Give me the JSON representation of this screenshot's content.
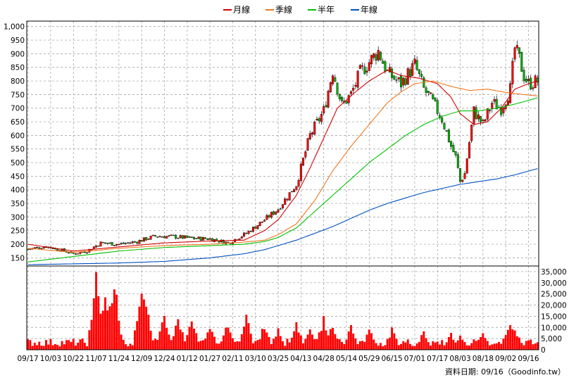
{
  "legend": [
    {
      "label": "月線",
      "color": "#d40000"
    },
    {
      "label": "季線",
      "color": "#f07820"
    },
    {
      "label": "半年",
      "color": "#00c000"
    },
    {
      "label": "年線",
      "color": "#0050c0"
    }
  ],
  "credit": "資料日期: 09/16（Goodinfo.tw）",
  "colors": {
    "up": "#ff0000",
    "down": "#00b000",
    "volume": "#ff0000",
    "grid": "#999999",
    "frame": "#000000"
  },
  "chart_data": {
    "type": "candlestick",
    "price_axis": {
      "min": 120,
      "max": 1020,
      "ticks": [
        150,
        200,
        250,
        300,
        350,
        400,
        450,
        500,
        550,
        600,
        650,
        700,
        750,
        800,
        850,
        900,
        950,
        1000
      ],
      "tick_labels": [
        "150",
        "200",
        "250",
        "300",
        "350",
        "400",
        "450",
        "500",
        "550",
        "600",
        "650",
        "700",
        "750",
        "800",
        "850",
        "900",
        "950",
        "1,000"
      ]
    },
    "volume_axis": {
      "min": 0,
      "max": 37500,
      "ticks": [
        0,
        5000,
        10000,
        15000,
        20000,
        25000,
        30000,
        35000
      ],
      "tick_labels": [
        "0",
        "5,000",
        "10,000",
        "15,000",
        "20,000",
        "25,000",
        "30,000",
        "35,000"
      ]
    },
    "x_labels": [
      "09/17",
      "10/03",
      "10/22",
      "11/07",
      "11/24",
      "12/09",
      "12/24",
      "01/12",
      "01/27",
      "02/11",
      "03/10",
      "03/25",
      "04/13",
      "04/28",
      "05/14",
      "05/29",
      "06/15",
      "07/01",
      "07/17",
      "08/03",
      "08/18",
      "09/02",
      "09/16"
    ],
    "x_label_index": [
      0,
      10,
      20,
      30,
      40,
      50,
      60,
      70,
      80,
      90,
      100,
      110,
      120,
      130,
      140,
      150,
      160,
      170,
      180,
      190,
      200,
      210,
      220
    ],
    "bars": 225,
    "close_anchors": [
      [
        0,
        182
      ],
      [
        8,
        192
      ],
      [
        14,
        180
      ],
      [
        20,
        165
      ],
      [
        26,
        175
      ],
      [
        32,
        205
      ],
      [
        40,
        200
      ],
      [
        48,
        210
      ],
      [
        56,
        230
      ],
      [
        64,
        228
      ],
      [
        72,
        222
      ],
      [
        80,
        220
      ],
      [
        88,
        205
      ],
      [
        96,
        240
      ],
      [
        104,
        290
      ],
      [
        110,
        330
      ],
      [
        118,
        420
      ],
      [
        124,
        600
      ],
      [
        130,
        690
      ],
      [
        134,
        840
      ],
      [
        138,
        710
      ],
      [
        142,
        750
      ],
      [
        146,
        830
      ],
      [
        150,
        870
      ],
      [
        154,
        910
      ],
      [
        158,
        830
      ],
      [
        164,
        790
      ],
      [
        170,
        860
      ],
      [
        174,
        770
      ],
      [
        178,
        720
      ],
      [
        182,
        660
      ],
      [
        186,
        560
      ],
      [
        188,
        520
      ],
      [
        190,
        430
      ],
      [
        192,
        460
      ],
      [
        196,
        690
      ],
      [
        200,
        640
      ],
      [
        204,
        720
      ],
      [
        208,
        700
      ],
      [
        212,
        770
      ],
      [
        214,
        920
      ],
      [
        216,
        880
      ],
      [
        218,
        820
      ],
      [
        220,
        790
      ],
      [
        224,
        800
      ]
    ],
    "ma_monthly": [
      [
        0,
        200
      ],
      [
        20,
        175
      ],
      [
        40,
        190
      ],
      [
        60,
        205
      ],
      [
        80,
        212
      ],
      [
        95,
        215
      ],
      [
        104,
        250
      ],
      [
        110,
        290
      ],
      [
        118,
        380
      ],
      [
        124,
        480
      ],
      [
        130,
        590
      ],
      [
        136,
        700
      ],
      [
        144,
        760
      ],
      [
        150,
        800
      ],
      [
        158,
        840
      ],
      [
        164,
        820
      ],
      [
        172,
        810
      ],
      [
        180,
        790
      ],
      [
        186,
        740
      ],
      [
        190,
        680
      ],
      [
        196,
        640
      ],
      [
        202,
        650
      ],
      [
        208,
        700
      ],
      [
        214,
        770
      ],
      [
        220,
        790
      ],
      [
        224,
        800
      ]
    ],
    "ma_quarterly": [
      [
        0,
        185
      ],
      [
        20,
        170
      ],
      [
        40,
        185
      ],
      [
        60,
        195
      ],
      [
        80,
        200
      ],
      [
        95,
        208
      ],
      [
        104,
        215
      ],
      [
        110,
        235
      ],
      [
        118,
        275
      ],
      [
        126,
        360
      ],
      [
        134,
        470
      ],
      [
        142,
        560
      ],
      [
        150,
        640
      ],
      [
        158,
        720
      ],
      [
        164,
        760
      ],
      [
        170,
        790
      ],
      [
        178,
        800
      ],
      [
        186,
        780
      ],
      [
        194,
        765
      ],
      [
        202,
        770
      ],
      [
        210,
        758
      ],
      [
        218,
        750
      ],
      [
        224,
        745
      ]
    ],
    "ma_halfyear": [
      [
        0,
        135
      ],
      [
        20,
        155
      ],
      [
        40,
        175
      ],
      [
        60,
        188
      ],
      [
        80,
        195
      ],
      [
        95,
        200
      ],
      [
        104,
        210
      ],
      [
        110,
        225
      ],
      [
        118,
        260
      ],
      [
        126,
        320
      ],
      [
        134,
        380
      ],
      [
        142,
        440
      ],
      [
        150,
        500
      ],
      [
        158,
        550
      ],
      [
        166,
        600
      ],
      [
        174,
        640
      ],
      [
        182,
        670
      ],
      [
        190,
        690
      ],
      [
        198,
        690
      ],
      [
        206,
        700
      ],
      [
        214,
        715
      ],
      [
        224,
        738
      ]
    ],
    "ma_yearly": [
      [
        0,
        125
      ],
      [
        20,
        128
      ],
      [
        40,
        131
      ],
      [
        60,
        137
      ],
      [
        80,
        150
      ],
      [
        95,
        165
      ],
      [
        104,
        180
      ],
      [
        110,
        195
      ],
      [
        118,
        215
      ],
      [
        126,
        240
      ],
      [
        134,
        265
      ],
      [
        142,
        295
      ],
      [
        150,
        325
      ],
      [
        158,
        350
      ],
      [
        166,
        370
      ],
      [
        174,
        390
      ],
      [
        182,
        405
      ],
      [
        190,
        420
      ],
      [
        198,
        430
      ],
      [
        206,
        440
      ],
      [
        214,
        455
      ],
      [
        224,
        478
      ]
    ],
    "volume_spikes": [
      [
        30,
        36000
      ],
      [
        34,
        25000
      ],
      [
        36,
        24000
      ],
      [
        38,
        36000
      ],
      [
        50,
        35000
      ],
      [
        52,
        22000
      ],
      [
        60,
        18000
      ],
      [
        66,
        16000
      ],
      [
        72,
        15000
      ],
      [
        80,
        12000
      ],
      [
        88,
        14000
      ],
      [
        96,
        16000
      ],
      [
        104,
        13000
      ],
      [
        110,
        10000
      ],
      [
        118,
        14000
      ],
      [
        124,
        12000
      ],
      [
        130,
        16000
      ],
      [
        134,
        13000
      ],
      [
        142,
        12000
      ],
      [
        150,
        10000
      ],
      [
        160,
        10000
      ],
      [
        174,
        9000
      ],
      [
        186,
        8000
      ],
      [
        190,
        7000
      ],
      [
        200,
        9000
      ],
      [
        212,
        15000
      ],
      [
        214,
        11000
      ]
    ]
  }
}
